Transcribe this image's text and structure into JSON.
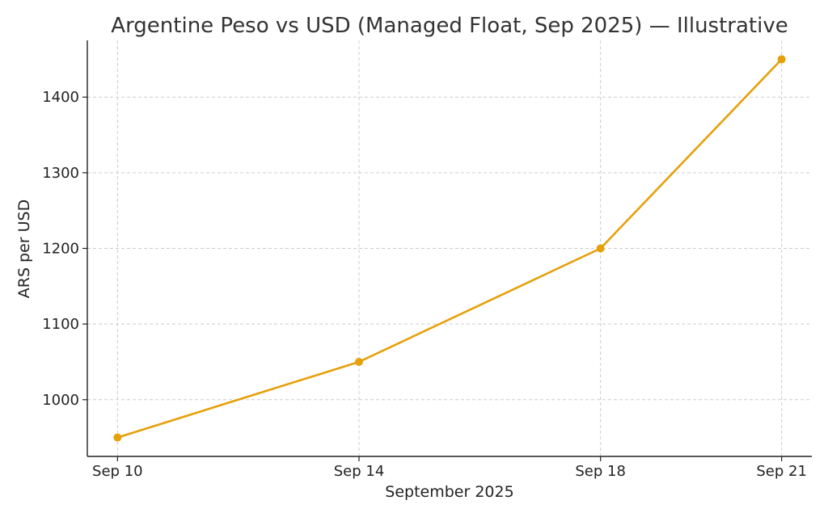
{
  "chart_data": {
    "type": "line",
    "title": "Argentine Peso vs USD (Managed Float, Sep 2025) — Illustrative",
    "xlabel": "September 2025",
    "ylabel": "ARS per USD",
    "x": [
      "2025-09-10",
      "2025-09-14",
      "2025-09-18",
      "2025-09-21"
    ],
    "x_tick_labels": [
      "Sep 10",
      "Sep 14",
      "Sep 18",
      "Sep 21"
    ],
    "series": [
      {
        "values": [
          950,
          1050,
          1200,
          1450
        ],
        "color": "#E6A00A"
      }
    ],
    "y_ticks": [
      1000,
      1100,
      1200,
      1300,
      1400
    ],
    "ylim": [
      925,
      1475
    ],
    "xlim": [
      "2025-09-09T12:00",
      "2025-09-21T12:00"
    ],
    "grid": true,
    "markers": true
  }
}
